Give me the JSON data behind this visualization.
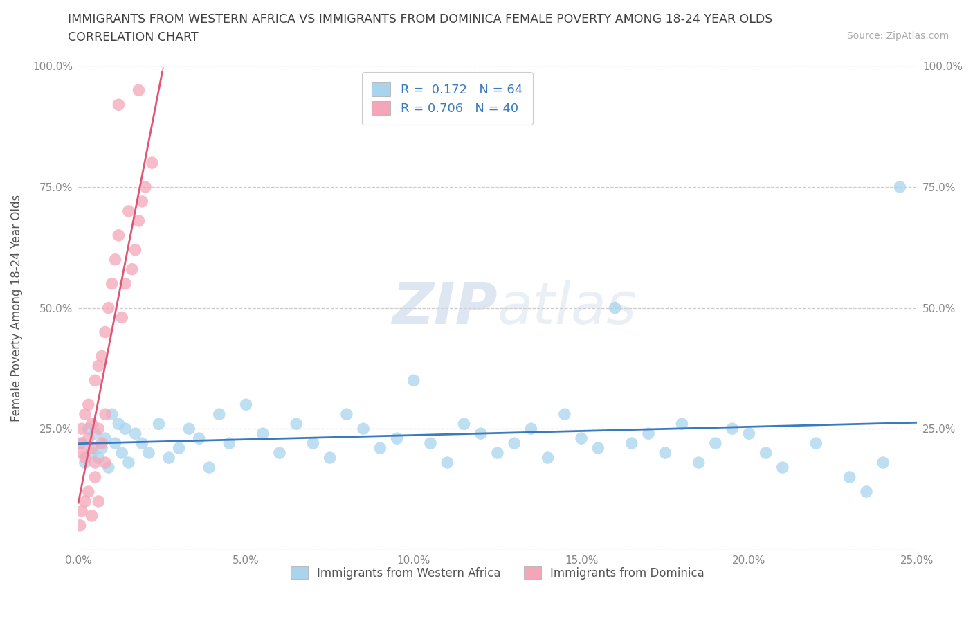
{
  "title_line1": "IMMIGRANTS FROM WESTERN AFRICA VS IMMIGRANTS FROM DOMINICA FEMALE POVERTY AMONG 18-24 YEAR OLDS",
  "title_line2": "CORRELATION CHART",
  "source_text": "Source: ZipAtlas.com",
  "ylabel": "Female Poverty Among 18-24 Year Olds",
  "watermark": "ZIPatlas",
  "series1_name": "Immigrants from Western Africa",
  "series1_color": "#a8d4ee",
  "series1_line_color": "#3a7abf",
  "series1_R": 0.172,
  "series1_N": 64,
  "series2_name": "Immigrants from Dominica",
  "series2_color": "#f4a6b8",
  "series2_line_color": "#e05575",
  "series2_R": 0.706,
  "series2_N": 40,
  "xlim": [
    0,
    0.25
  ],
  "ylim": [
    0,
    1.0
  ],
  "xticks": [
    0,
    0.05,
    0.1,
    0.15,
    0.2,
    0.25
  ],
  "yticks": [
    0,
    0.25,
    0.5,
    0.75,
    1.0
  ],
  "xticklabels": [
    "0.0%",
    "5.0%",
    "10.0%",
    "15.0%",
    "20.0%",
    "25.0%"
  ],
  "yticklabels_left": [
    "",
    "25.0%",
    "50.0%",
    "75.0%",
    "100.0%"
  ],
  "yticklabels_right": [
    "",
    "25.0%",
    "50.0%",
    "75.0%",
    "100.0%"
  ],
  "legend_text_color": "#3a7abf",
  "background_color": "#ffffff",
  "grid_color": "#cccccc",
  "title_color": "#404040",
  "axis_color": "#888888",
  "series1_x": [
    0.001,
    0.002,
    0.003,
    0.004,
    0.005,
    0.006,
    0.007,
    0.008,
    0.009,
    0.01,
    0.011,
    0.012,
    0.013,
    0.014,
    0.015,
    0.017,
    0.019,
    0.021,
    0.024,
    0.027,
    0.03,
    0.033,
    0.036,
    0.039,
    0.042,
    0.045,
    0.05,
    0.055,
    0.06,
    0.065,
    0.07,
    0.075,
    0.08,
    0.085,
    0.09,
    0.095,
    0.1,
    0.105,
    0.11,
    0.115,
    0.12,
    0.125,
    0.13,
    0.135,
    0.14,
    0.145,
    0.15,
    0.155,
    0.16,
    0.165,
    0.17,
    0.175,
    0.18,
    0.185,
    0.19,
    0.195,
    0.2,
    0.205,
    0.21,
    0.22,
    0.23,
    0.235,
    0.24,
    0.245
  ],
  "series1_y": [
    0.22,
    0.18,
    0.25,
    0.2,
    0.24,
    0.19,
    0.21,
    0.23,
    0.17,
    0.28,
    0.22,
    0.26,
    0.2,
    0.25,
    0.18,
    0.24,
    0.22,
    0.2,
    0.26,
    0.19,
    0.21,
    0.25,
    0.23,
    0.17,
    0.28,
    0.22,
    0.3,
    0.24,
    0.2,
    0.26,
    0.22,
    0.19,
    0.28,
    0.25,
    0.21,
    0.23,
    0.35,
    0.22,
    0.18,
    0.26,
    0.24,
    0.2,
    0.22,
    0.25,
    0.19,
    0.28,
    0.23,
    0.21,
    0.5,
    0.22,
    0.24,
    0.2,
    0.26,
    0.18,
    0.22,
    0.25,
    0.24,
    0.2,
    0.17,
    0.22,
    0.15,
    0.12,
    0.18,
    0.75
  ],
  "series2_x": [
    0.0005,
    0.001,
    0.001,
    0.002,
    0.002,
    0.003,
    0.003,
    0.004,
    0.004,
    0.005,
    0.005,
    0.006,
    0.006,
    0.007,
    0.007,
    0.008,
    0.008,
    0.009,
    0.01,
    0.011,
    0.012,
    0.013,
    0.014,
    0.015,
    0.016,
    0.017,
    0.018,
    0.019,
    0.02,
    0.022,
    0.0005,
    0.001,
    0.002,
    0.003,
    0.004,
    0.005,
    0.006,
    0.008,
    0.012,
    0.018
  ],
  "series2_y": [
    0.22,
    0.2,
    0.25,
    0.28,
    0.19,
    0.3,
    0.23,
    0.26,
    0.21,
    0.35,
    0.18,
    0.38,
    0.25,
    0.4,
    0.22,
    0.45,
    0.28,
    0.5,
    0.55,
    0.6,
    0.65,
    0.48,
    0.55,
    0.7,
    0.58,
    0.62,
    0.68,
    0.72,
    0.75,
    0.8,
    0.05,
    0.08,
    0.1,
    0.12,
    0.07,
    0.15,
    0.1,
    0.18,
    0.92,
    0.95
  ]
}
